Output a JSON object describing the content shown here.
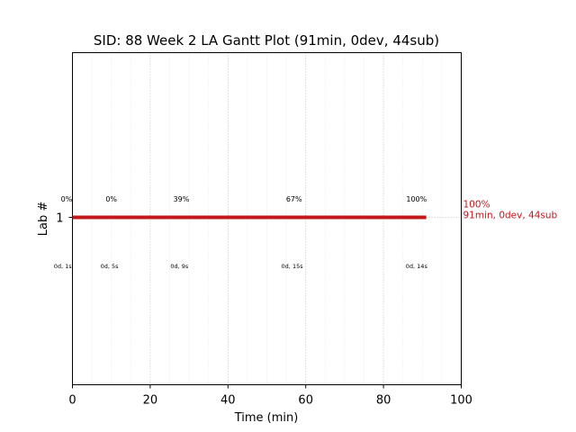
{
  "chart_data": {
    "type": "gantt",
    "title": "SID: 88 Week 2 LA Gantt Plot (91min, 0dev, 44sub)",
    "xlabel": "Time (min)",
    "ylabel": "Lab #",
    "xlim": [
      0,
      100
    ],
    "x_ticks": [
      0,
      20,
      40,
      60,
      80,
      100
    ],
    "x_tick_labels": [
      "0",
      "20",
      "40",
      "60",
      "80",
      "100"
    ],
    "y_tick_labels": [
      "1"
    ],
    "grid": "vertical dotted",
    "bars": [
      {
        "lab": "1",
        "start": 0,
        "end": 91,
        "color": "#c0181b",
        "end_label_pct": "100%",
        "end_label_summary": "91min, 0dev, 44sub"
      }
    ],
    "progress_labels": [
      {
        "x": -1.5,
        "text": "0%"
      },
      {
        "x": 10,
        "text": "0%"
      },
      {
        "x": 28,
        "text": "39%"
      },
      {
        "x": 57,
        "text": "67%"
      },
      {
        "x": 88.5,
        "text": "100%"
      }
    ],
    "elapsed_labels": [
      {
        "x": -2.5,
        "text": "0d, 1s"
      },
      {
        "x": 9.5,
        "text": "0d, 5s"
      },
      {
        "x": 27.5,
        "text": "0d, 9s"
      },
      {
        "x": 56.5,
        "text": "0d, 15s"
      },
      {
        "x": 88.5,
        "text": "0d, 14s"
      }
    ],
    "colors": {
      "bar": "#c0181b",
      "annotation": "#c0181b",
      "grid": "#b0b0b0",
      "axes": "#000000"
    }
  }
}
